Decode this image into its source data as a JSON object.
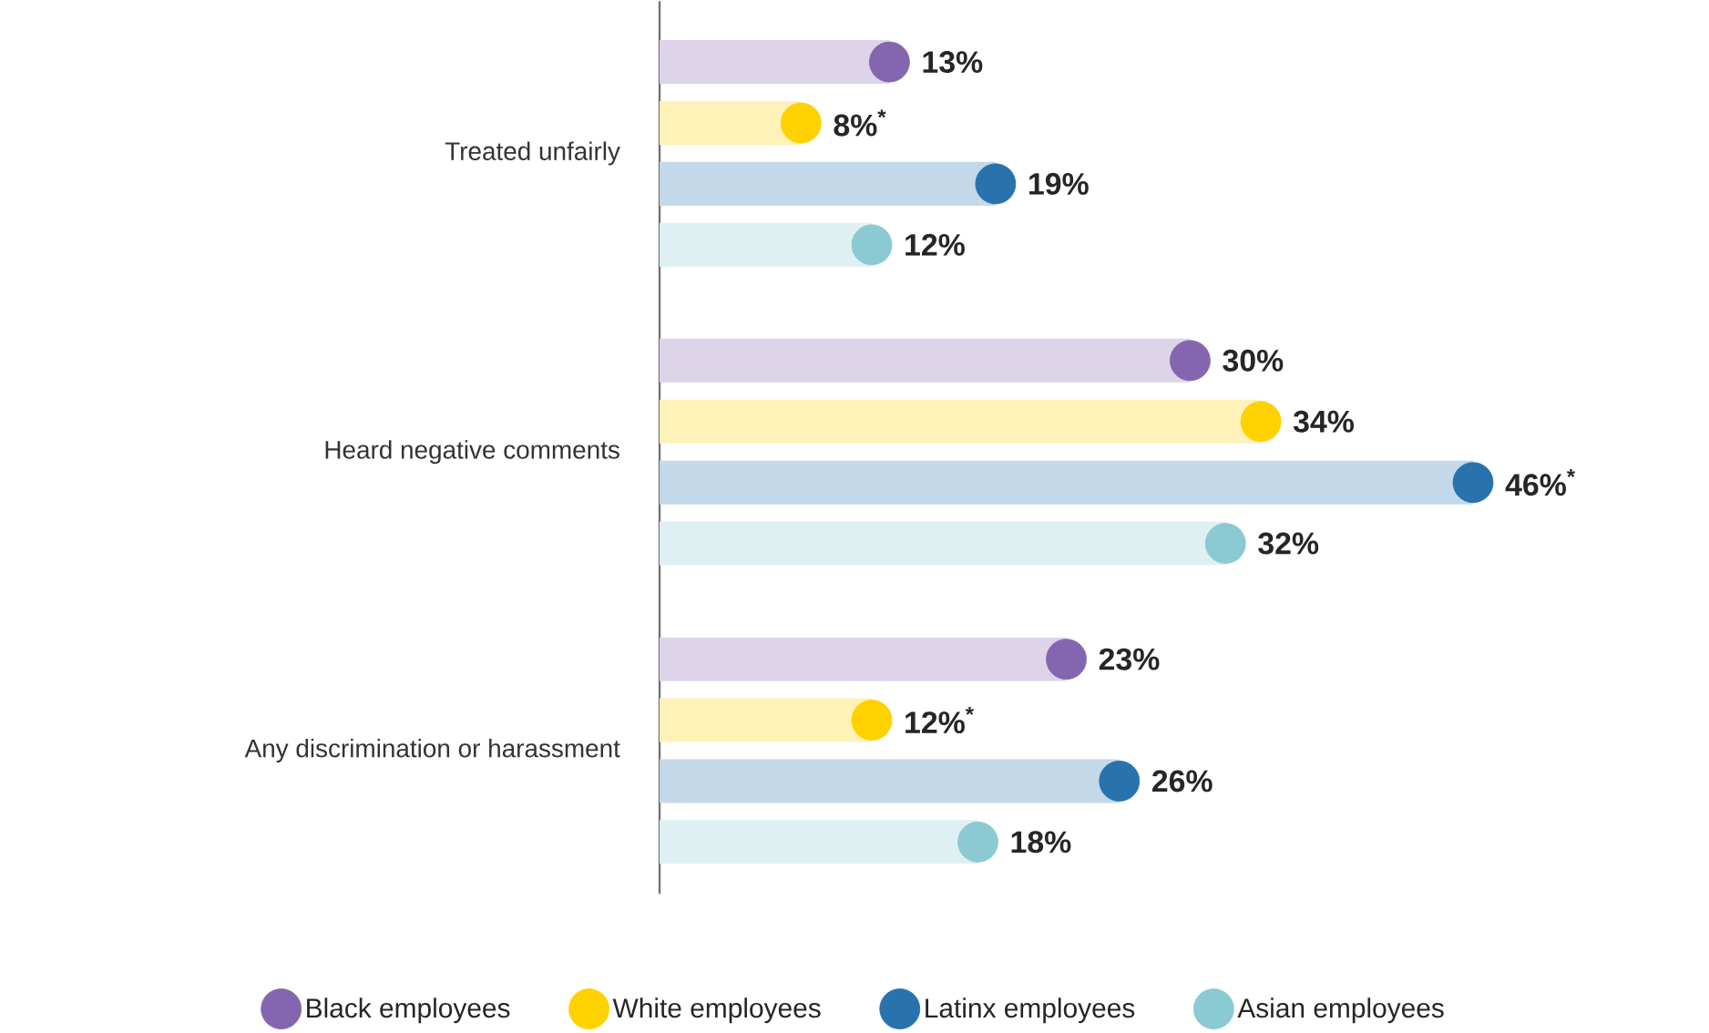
{
  "chart_data": {
    "type": "lollipop",
    "orientation": "horizontal",
    "marker": "circle",
    "legend": "bottom",
    "tick_labels": "y",
    "categories": [
      "Treated unfairly",
      "Heard negative comments",
      "Any discrimination or harassment"
    ],
    "series": [
      {
        "name": "Black employees",
        "color": "#8466b0",
        "values": [
          13,
          30,
          23
        ],
        "value_labels": [
          "13%",
          "30%",
          "23%"
        ]
      },
      {
        "name": "White employees",
        "color": "#ffd100",
        "values": [
          8,
          34,
          12
        ],
        "value_labels": [
          "8%$^{*}$",
          "34%",
          "12%$^{*}$"
        ]
      },
      {
        "name": "Latinx employees",
        "color": "#2872ae",
        "values": [
          19,
          46,
          26
        ],
        "value_labels": [
          "19%",
          "46%$^{*}$",
          "26%"
        ]
      },
      {
        "name": "Asian employees",
        "color": "#8bc9d3",
        "values": [
          12,
          32,
          18
        ],
        "value_labels": [
          "12%",
          "32%",
          "18%"
        ]
      }
    ]
  }
}
